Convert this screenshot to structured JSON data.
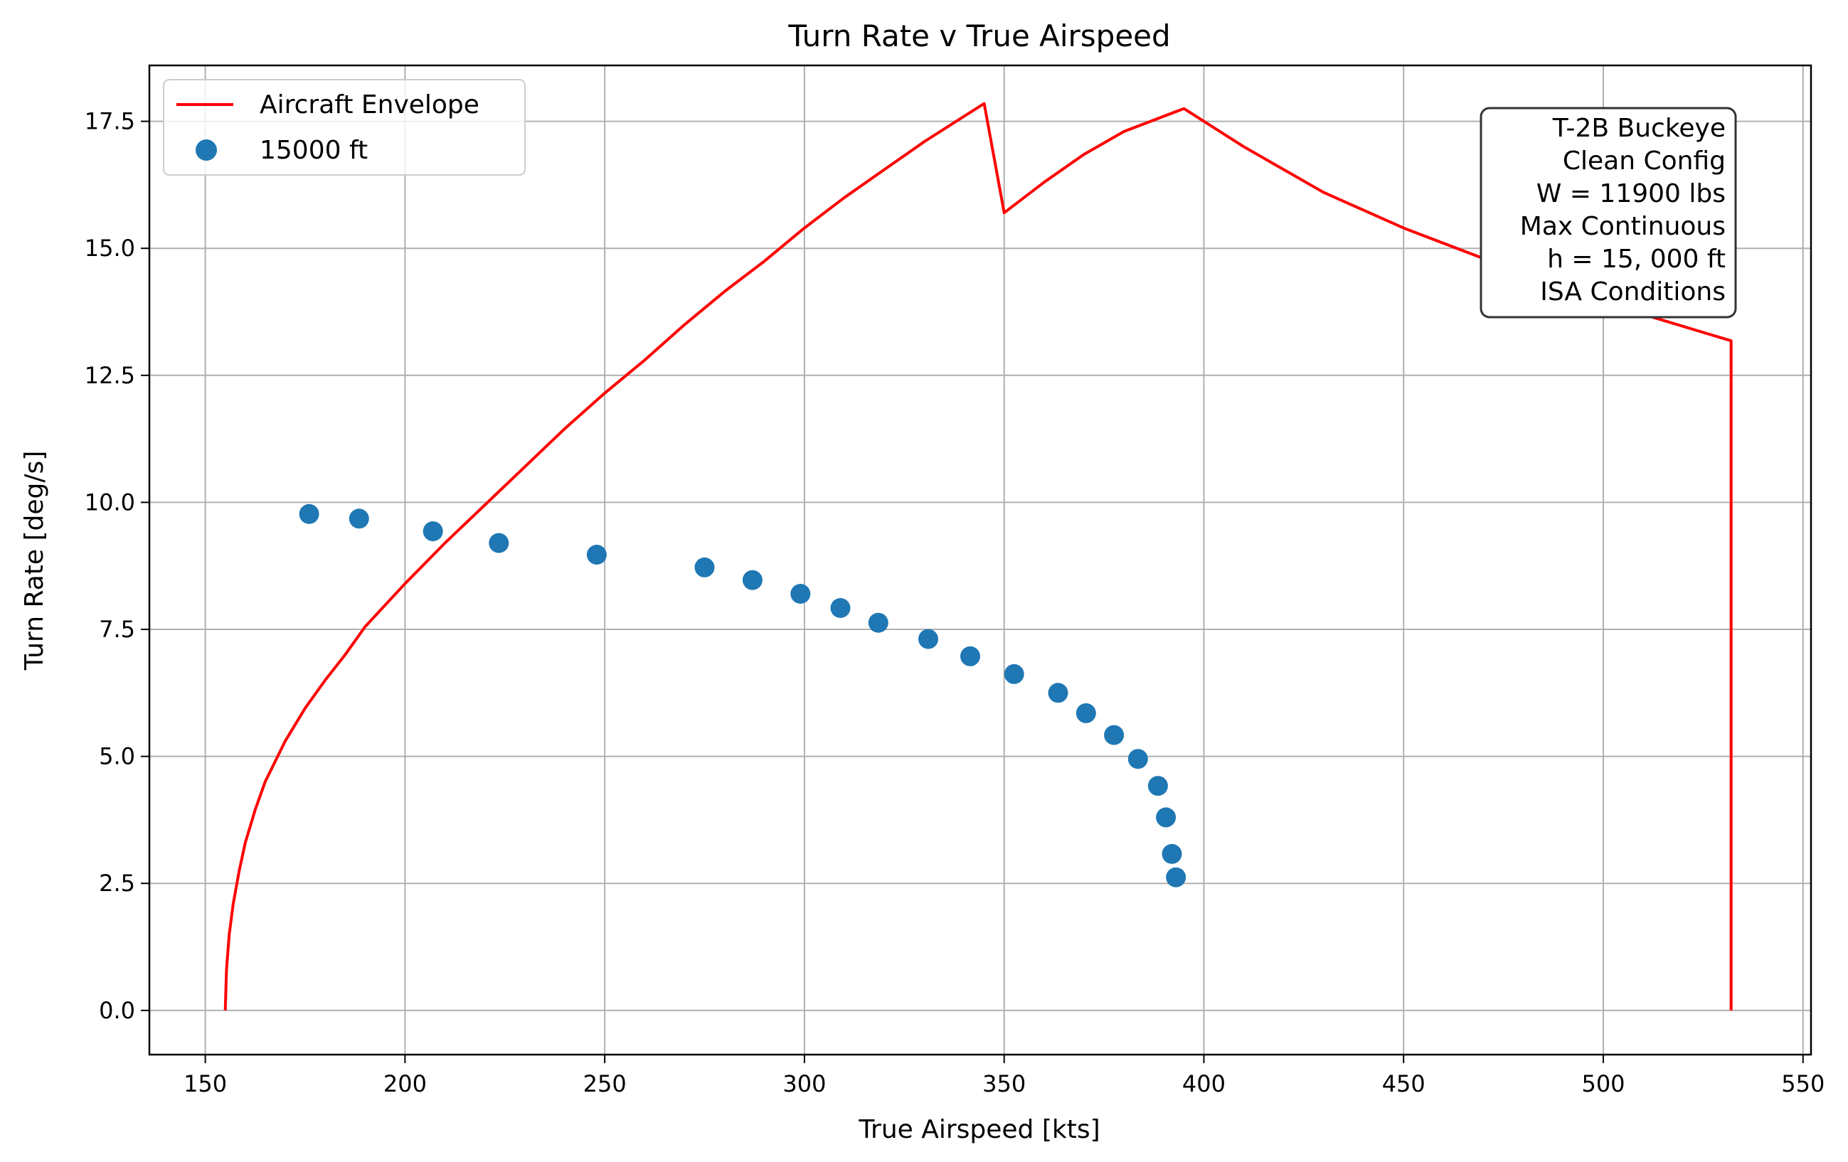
{
  "chart_data": {
    "type": "line",
    "title": "Turn Rate v True Airspeed",
    "xlabel": "True Airspeed [kts]",
    "ylabel": "Turn Rate [deg/s]",
    "xlim": [
      136,
      552
    ],
    "ylim": [
      -0.87,
      18.6
    ],
    "xticks": [
      150,
      200,
      250,
      300,
      350,
      400,
      450,
      500,
      550
    ],
    "yticks": [
      0.0,
      2.5,
      5.0,
      7.5,
      10.0,
      12.5,
      15.0,
      17.5
    ],
    "xtick_labels": [
      "150",
      "200",
      "250",
      "300",
      "350",
      "400",
      "450",
      "500",
      "550"
    ],
    "ytick_labels": [
      "0.0",
      "2.5",
      "5.0",
      "7.5",
      "10.0",
      "12.5",
      "15.0",
      "17.5"
    ],
    "grid": true,
    "legend_position": "upper-left",
    "series": [
      {
        "name": "Aircraft Envelope",
        "kind": "line",
        "color": "#ff0000",
        "points": [
          [
            155,
            0.0
          ],
          [
            155.3,
            0.8
          ],
          [
            156,
            1.5
          ],
          [
            157,
            2.1
          ],
          [
            158.5,
            2.75
          ],
          [
            160,
            3.3
          ],
          [
            162.5,
            3.95
          ],
          [
            165,
            4.5
          ],
          [
            170,
            5.3
          ],
          [
            175,
            5.95
          ],
          [
            180,
            6.5
          ],
          [
            185,
            7.0
          ],
          [
            190,
            7.55
          ],
          [
            200,
            8.4
          ],
          [
            210,
            9.2
          ],
          [
            220,
            9.95
          ],
          [
            230,
            10.7
          ],
          [
            240,
            11.45
          ],
          [
            250,
            12.15
          ],
          [
            260,
            12.8
          ],
          [
            270,
            13.5
          ],
          [
            280,
            14.15
          ],
          [
            290,
            14.75
          ],
          [
            300,
            15.4
          ],
          [
            310,
            16.0
          ],
          [
            320,
            16.55
          ],
          [
            330,
            17.1
          ],
          [
            340,
            17.6
          ],
          [
            345,
            17.85
          ],
          [
            350,
            15.7
          ],
          [
            360,
            16.3
          ],
          [
            370,
            16.85
          ],
          [
            380,
            17.3
          ],
          [
            395,
            17.75
          ],
          [
            410,
            17.0
          ],
          [
            430,
            16.1
          ],
          [
            450,
            15.4
          ],
          [
            470,
            14.8
          ],
          [
            490,
            14.25
          ],
          [
            510,
            13.7
          ],
          [
            532,
            13.18
          ],
          [
            532,
            0.0
          ]
        ]
      },
      {
        "name": "15000 ft",
        "kind": "scatter",
        "color": "#1f77b4",
        "points": [
          [
            176,
            9.77
          ],
          [
            188.5,
            9.68
          ],
          [
            207,
            9.43
          ],
          [
            223.5,
            9.2
          ],
          [
            248,
            8.97
          ],
          [
            275,
            8.72
          ],
          [
            287,
            8.47
          ],
          [
            299,
            8.2
          ],
          [
            309,
            7.92
          ],
          [
            318.5,
            7.63
          ],
          [
            331,
            7.31
          ],
          [
            341.5,
            6.97
          ],
          [
            352.5,
            6.62
          ],
          [
            363.5,
            6.25
          ],
          [
            370.5,
            5.85
          ],
          [
            377.5,
            5.42
          ],
          [
            383.5,
            4.95
          ],
          [
            388.5,
            4.42
          ],
          [
            390.5,
            3.8
          ],
          [
            392,
            3.08
          ],
          [
            393,
            2.62
          ]
        ]
      }
    ],
    "annotation": {
      "position": "upper-right",
      "lines": [
        "T-2B Buckeye",
        "Clean Config",
        "W = 11900 lbs",
        "Max Continuous",
        "h = 15, 000 ft",
        "ISA Conditions"
      ]
    }
  }
}
